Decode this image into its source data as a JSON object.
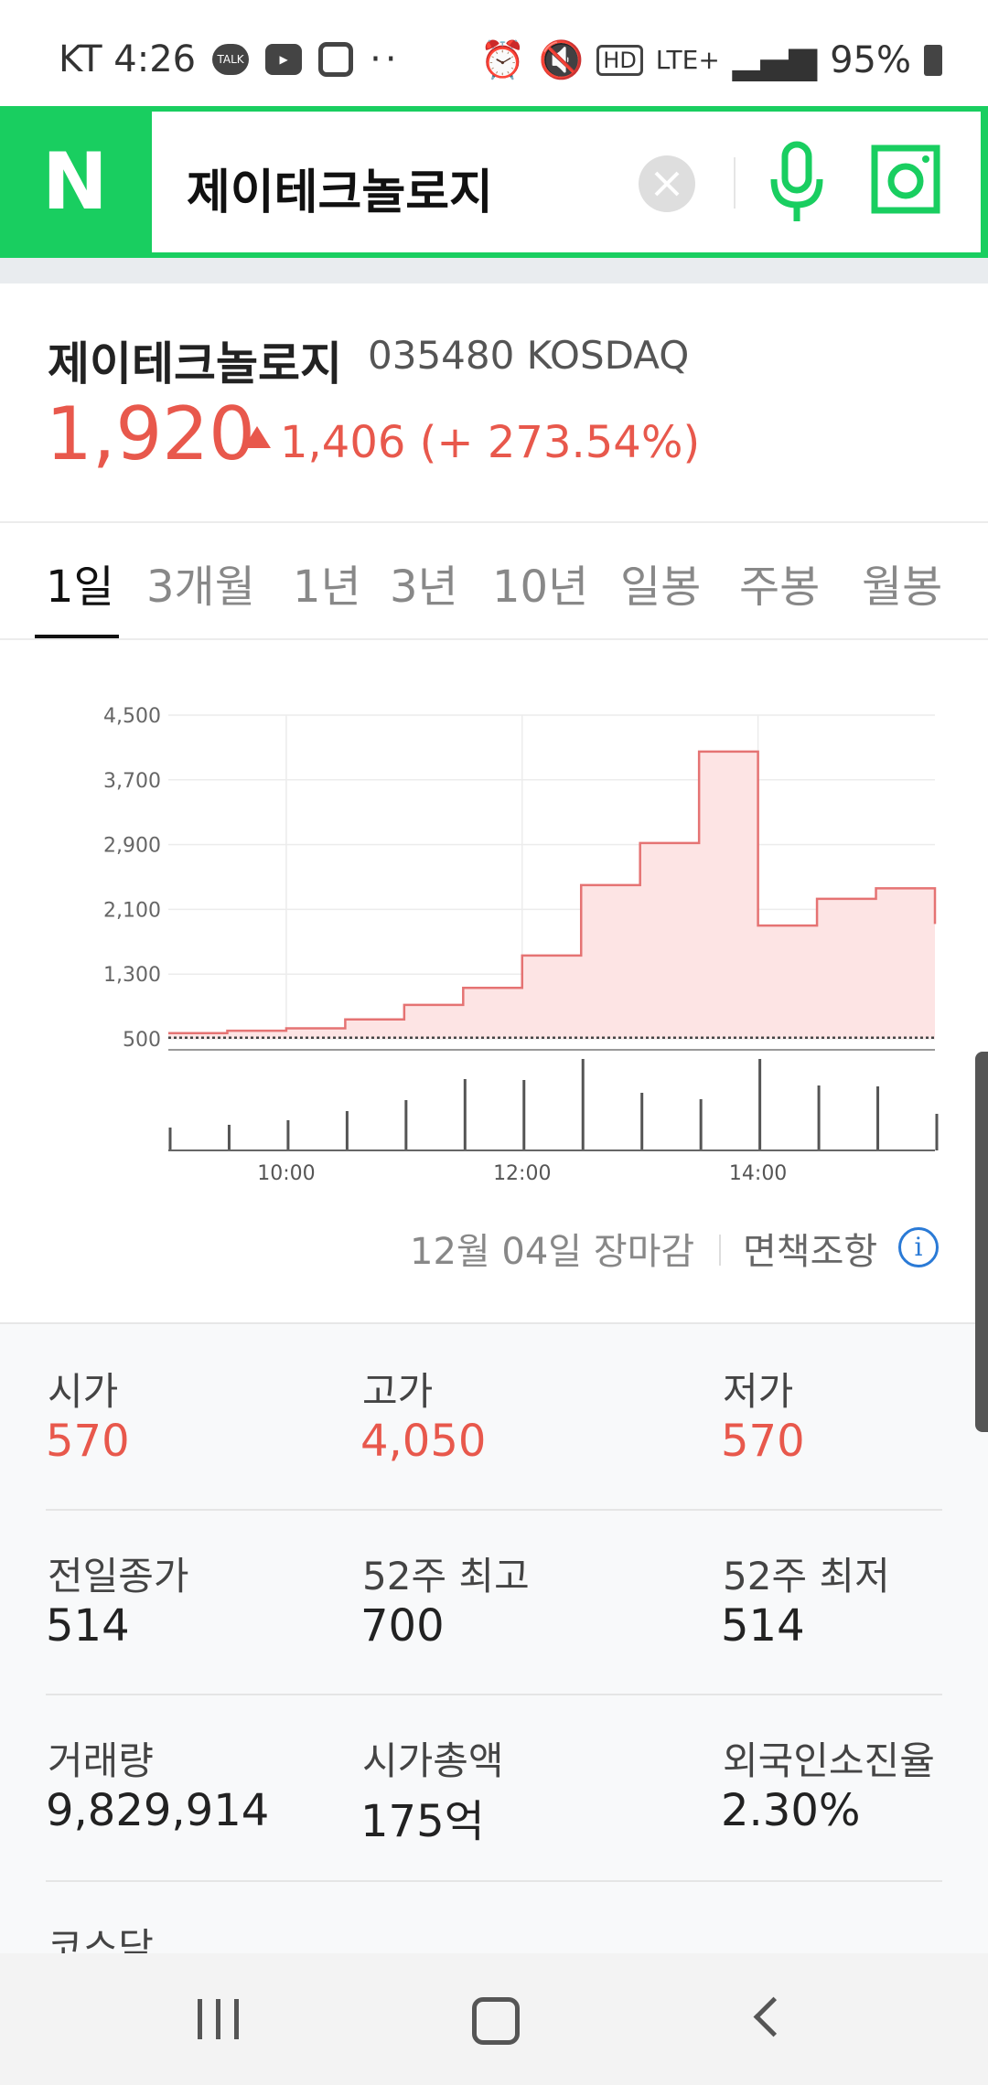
{
  "status_bar": {
    "carrier_time": "KT 4:26",
    "network": "LTE+",
    "battery": "95%"
  },
  "search": {
    "logo": "N",
    "query": "제이테크놀로지"
  },
  "stock": {
    "name": "제이테크놀로지",
    "code_market": "035480 KOSDAQ",
    "price": "1,920",
    "change": "1,406 (+ 273.54%)"
  },
  "tabs": [
    "1일",
    "3개월",
    "1년",
    "3년",
    "10년",
    "일봉",
    "주봉",
    "월봉"
  ],
  "chart_data": {
    "type": "area",
    "x_labels": [
      "10:00",
      "12:00",
      "14:00"
    ],
    "y_ticks": [
      "4,500",
      "3,700",
      "2,900",
      "2,100",
      "1,300",
      "500"
    ],
    "ylim": [
      500,
      4500
    ],
    "price_series": {
      "x": [
        "09:00",
        "09:30",
        "10:00",
        "10:30",
        "11:00",
        "11:30",
        "12:00",
        "12:30",
        "13:00",
        "13:30",
        "14:00",
        "14:30",
        "15:00",
        "15:30"
      ],
      "values": [
        570,
        600,
        630,
        740,
        920,
        1130,
        1530,
        2400,
        2920,
        4050,
        1900,
        2230,
        2360,
        1920
      ]
    },
    "reference_line": 514,
    "volume_series": {
      "x": [
        "09:00",
        "09:30",
        "10:00",
        "10:30",
        "11:00",
        "11:30",
        "12:00",
        "12:30",
        "13:00",
        "13:30",
        "14:00",
        "14:30",
        "15:00",
        "15:30"
      ],
      "relative_heights": [
        0.25,
        0.28,
        0.33,
        0.43,
        0.55,
        0.78,
        0.77,
        1.0,
        0.63,
        0.56,
        1.0,
        0.71,
        0.7,
        0.4
      ]
    },
    "colors": {
      "line": "#e57373",
      "fill": "#fde4e4"
    }
  },
  "chart_footer": {
    "date_note": "12월 04일 장마감",
    "disclaimer": "면책조항"
  },
  "stats": [
    {
      "label": "시가",
      "value": "570",
      "red": true
    },
    {
      "label": "고가",
      "value": "4,050",
      "red": true
    },
    {
      "label": "저가",
      "value": "570",
      "red": true
    },
    {
      "label": "전일종가",
      "value": "514",
      "red": false
    },
    {
      "label": "52주 최고",
      "value": "700",
      "red": false
    },
    {
      "label": "52주 최저",
      "value": "514",
      "red": false
    },
    {
      "label": "거래량",
      "value": "9,829,914",
      "red": false
    },
    {
      "label": "시가총액",
      "value": "175억",
      "red": false
    },
    {
      "label": "외국인소진율",
      "value": "2.30%",
      "red": false
    }
  ],
  "next_section": "코스닥"
}
